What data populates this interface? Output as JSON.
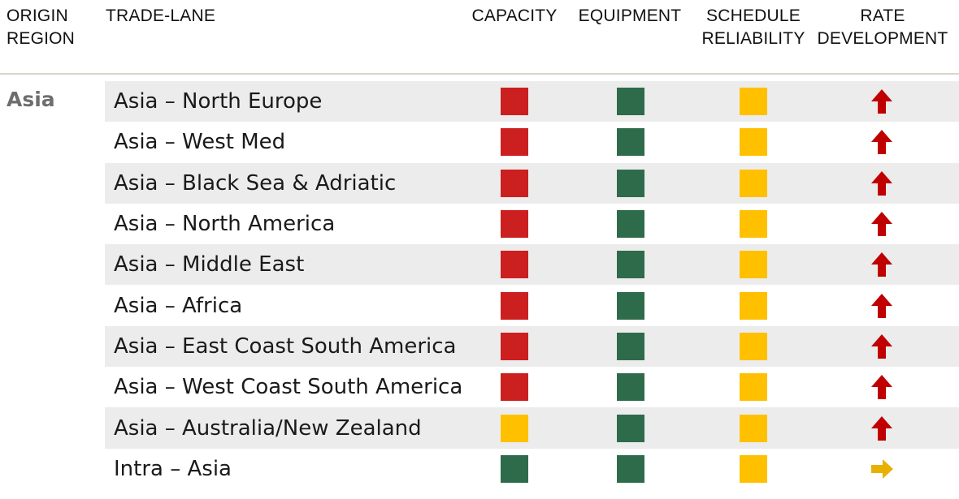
{
  "headers": {
    "origin_region": [
      "ORIGIN",
      "REGION"
    ],
    "trade_lane": "TRADE-LANE",
    "capacity": "CAPACITY",
    "equipment": "EQUIPMENT",
    "schedule_reliability": [
      "SCHEDULE",
      "RELIABILITY"
    ],
    "rate_development": [
      "RATE",
      "DEVELOPMENT"
    ]
  },
  "region": "Asia",
  "status_colors": {
    "red": "#cc1f1f",
    "green": "#2e6b4b",
    "amber": "#ffc000"
  },
  "rate_colors": {
    "up": "#c00000",
    "flat": "#e8b000"
  },
  "lanes": [
    {
      "name": "Asia – North Europe",
      "capacity": "red",
      "equipment": "green",
      "schedule": "amber",
      "rate": "up"
    },
    {
      "name": "Asia – West Med",
      "capacity": "red",
      "equipment": "green",
      "schedule": "amber",
      "rate": "up"
    },
    {
      "name": "Asia – Black Sea & Adriatic",
      "capacity": "red",
      "equipment": "green",
      "schedule": "amber",
      "rate": "up"
    },
    {
      "name": "Asia – North America",
      "capacity": "red",
      "equipment": "green",
      "schedule": "amber",
      "rate": "up"
    },
    {
      "name": "Asia – Middle East",
      "capacity": "red",
      "equipment": "green",
      "schedule": "amber",
      "rate": "up"
    },
    {
      "name": "Asia – Africa",
      "capacity": "red",
      "equipment": "green",
      "schedule": "amber",
      "rate": "up"
    },
    {
      "name": "Asia – East Coast South America",
      "capacity": "red",
      "equipment": "green",
      "schedule": "amber",
      "rate": "up"
    },
    {
      "name": "Asia – West Coast South America",
      "capacity": "red",
      "equipment": "green",
      "schedule": "amber",
      "rate": "up"
    },
    {
      "name": "Asia – Australia/New Zealand",
      "capacity": "amber",
      "equipment": "green",
      "schedule": "amber",
      "rate": "up"
    },
    {
      "name": "Intra – Asia",
      "capacity": "green",
      "equipment": "green",
      "schedule": "amber",
      "rate": "flat"
    }
  ]
}
